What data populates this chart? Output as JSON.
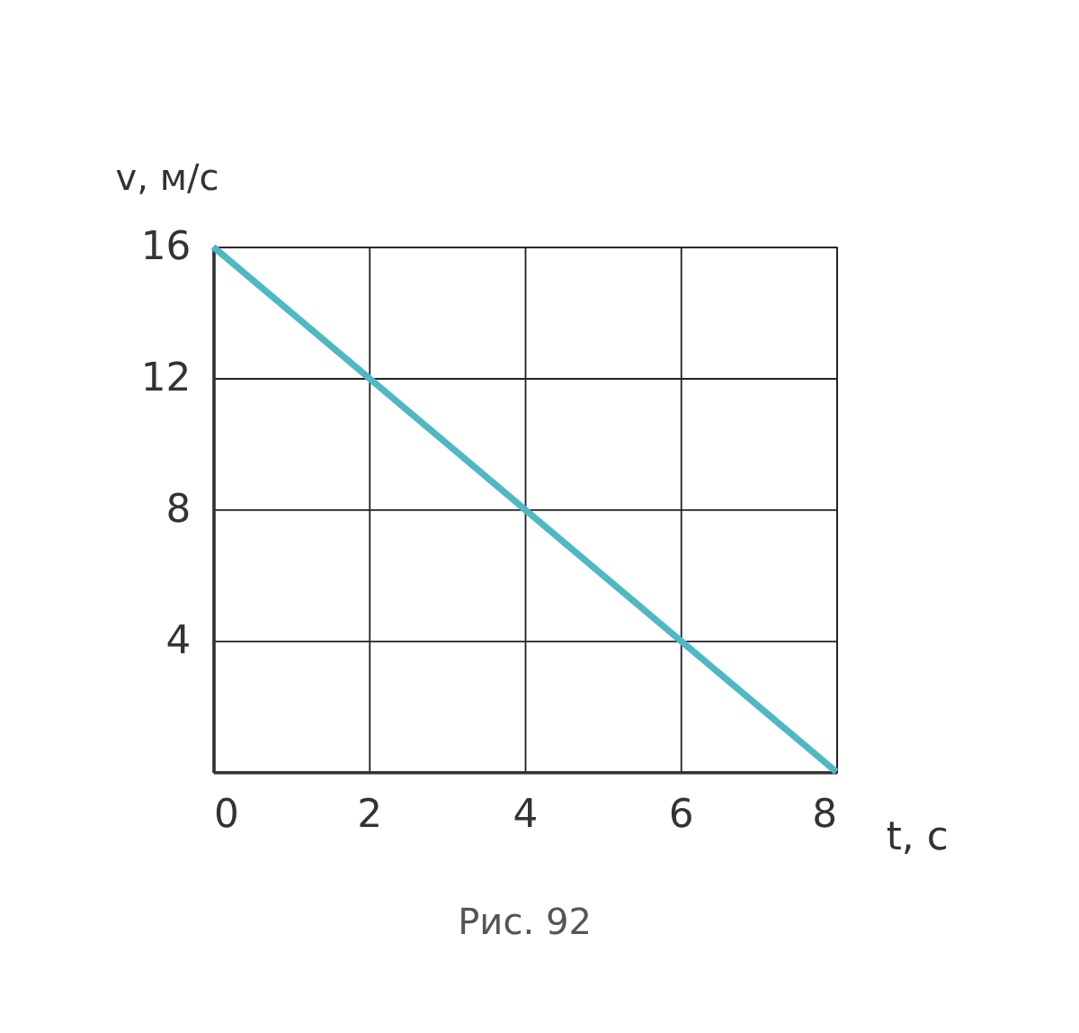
{
  "chart_data": {
    "type": "line",
    "xlabel": "t, с",
    "ylabel": "v, м/с",
    "x": [
      0,
      8
    ],
    "series": [
      {
        "color": "#4fb8c4",
        "values": [
          16,
          0
        ]
      }
    ],
    "xlim": [
      0,
      8
    ],
    "ylim": [
      0,
      16
    ],
    "xticks": [
      0,
      2,
      4,
      6,
      8
    ],
    "yticks": [
      4,
      8,
      12,
      16
    ],
    "grid": true,
    "marker": "none",
    "line_style": "solid",
    "annotations": [
      "Рис. 92"
    ]
  }
}
